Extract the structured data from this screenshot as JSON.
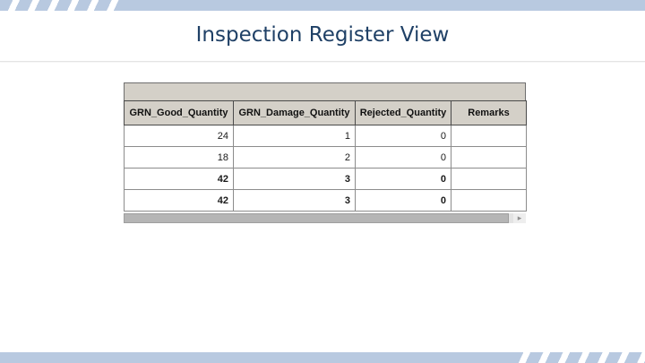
{
  "page": {
    "title": "Inspection Register View"
  },
  "colors": {
    "bar_blue": "#b8c9e0",
    "stripe_white": "#ffffff",
    "title_navy": "#1f4066",
    "table_gray": "#d4d0c8",
    "border_dark": "#4a4a4a",
    "border_mid": "#8c8c8c",
    "scroll_thumb": "#b5b5b5",
    "scroll_track": "#e3e3e3"
  },
  "table": {
    "caption": "",
    "columns": [
      "GRN_Good_Quantity",
      "GRN_Damage_Quantity",
      "Rejected_Quantity",
      "Remarks"
    ],
    "rows": [
      {
        "cells": [
          "24",
          "1",
          "0",
          ""
        ],
        "bold": false
      },
      {
        "cells": [
          "18",
          "2",
          "0",
          ""
        ],
        "bold": false
      },
      {
        "cells": [
          "42",
          "3",
          "0",
          ""
        ],
        "bold": true
      },
      {
        "cells": [
          "42",
          "3",
          "0",
          ""
        ],
        "bold": true
      }
    ]
  },
  "icons": {
    "scroll_right_arrow": "▸"
  }
}
